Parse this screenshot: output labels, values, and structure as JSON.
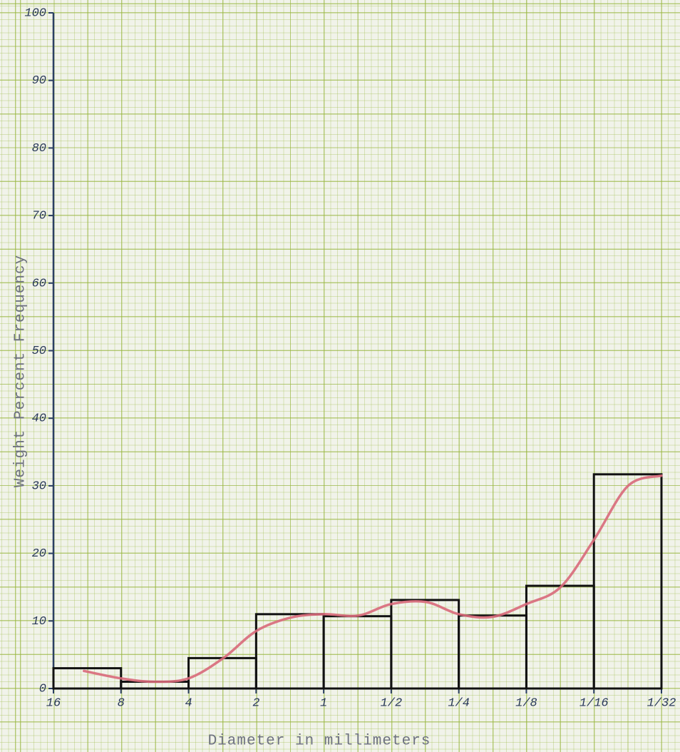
{
  "chart_data": {
    "type": "histogram",
    "xlabel": "Diameter in millimeters",
    "ylabel": "Weight Percent Frequency",
    "bins": [
      16,
      8,
      4,
      2,
      1,
      0.5,
      0.25,
      0.125,
      0.0625,
      0.03125
    ],
    "values": [
      3,
      1,
      4.5,
      11,
      10.7,
      13.1,
      10.8,
      15.2,
      31.7
    ],
    "color": "#111111",
    "curve": {
      "color": "#d8697a",
      "x": [
        11.7,
        8,
        5.7,
        4,
        2.8,
        2,
        1.4,
        1,
        0.7,
        0.5,
        0.35,
        0.25,
        0.177,
        0.125,
        0.088,
        0.0625,
        0.044,
        0.03125
      ],
      "values": [
        2.6,
        1.5,
        1.0,
        1.5,
        4.5,
        8.5,
        10.5,
        11,
        10.8,
        12.5,
        12.8,
        11,
        10.6,
        12.5,
        15,
        22,
        30,
        31.5
      ]
    },
    "xscale": "log",
    "xlim": [
      16,
      0.03125
    ],
    "xticks": [
      16,
      8,
      4,
      2,
      1,
      {
        "value": 0.5,
        "label": "1/2"
      },
      {
        "value": 0.25,
        "label": "1/4"
      },
      {
        "value": 0.125,
        "label": "1/8"
      },
      {
        "value": 0.0625,
        "label": "1/16"
      },
      {
        "value": 0.03125,
        "label": "1/32"
      }
    ],
    "ylim": [
      0,
      100
    ],
    "yticks": [
      0,
      10,
      20,
      30,
      40,
      50,
      60,
      70,
      80,
      90,
      100
    ]
  }
}
